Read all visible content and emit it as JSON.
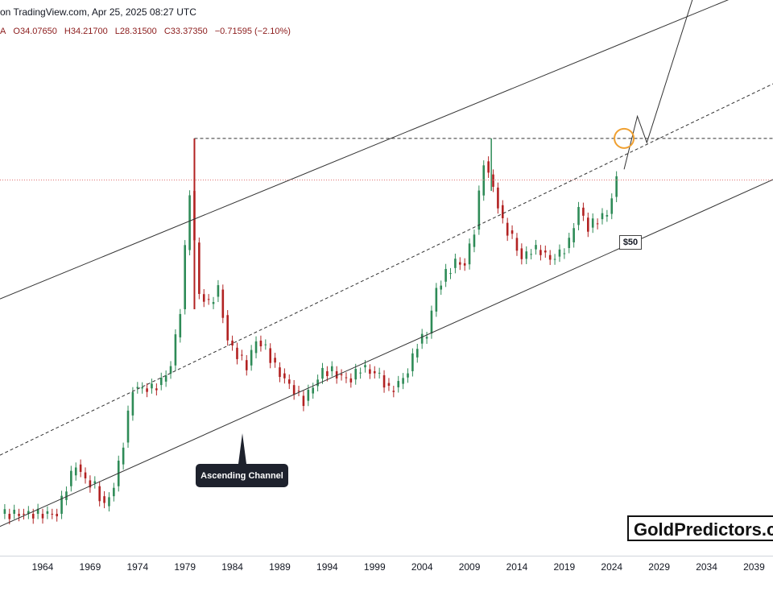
{
  "header": {
    "source": "on TradingView.com, Apr 25, 2025 08:27 UTC",
    "prefix": "A",
    "open": "O34.07650",
    "high": "H34.21700",
    "low": "L28.31500",
    "close": "C33.37350",
    "change": "−0.71595 (−2.10%)"
  },
  "annotations": {
    "channel_label": "Ascending Channel",
    "price_label": "$50",
    "watermark": "GoldPredictors.com"
  },
  "colors": {
    "up": "#26a69a",
    "up_body": "#2e8b57",
    "down": "#b22222",
    "line": "#333333",
    "orange": "#f0a030",
    "price_line": "#e07070"
  },
  "chart_data": {
    "type": "candlestick",
    "title": "",
    "xlabel": "",
    "ylabel": "",
    "x_ticks": [
      "1964",
      "1969",
      "1974",
      "1979",
      "1984",
      "1989",
      "1994",
      "1999",
      "2004",
      "2009",
      "2014",
      "2019",
      "2024",
      "2029",
      "2034",
      "2039"
    ],
    "series": [
      {
        "x": [
          1960,
          1962,
          1964,
          1966,
          1967,
          1968,
          1969,
          1970,
          1971,
          1972,
          1973,
          1974,
          1975,
          1976,
          1977,
          1978,
          1979,
          1980,
          1981,
          1982,
          1983,
          1984,
          1985,
          1986,
          1987,
          1988,
          1989,
          1990,
          1991,
          1992,
          1993,
          1994,
          1995,
          1996,
          1997,
          1998,
          1999,
          2000,
          2001,
          2002,
          2003,
          2004,
          2005,
          2006,
          2007,
          2008,
          2009,
          2010,
          2011,
          2012,
          2013,
          2014,
          2015,
          2016,
          2017,
          2018,
          2019,
          2020,
          2021,
          2022,
          2023,
          2024,
          2025
        ],
        "values": [
          1.3,
          1.3,
          1.3,
          1.3,
          1.7,
          2.1,
          1.8,
          1.7,
          1.4,
          1.7,
          2.6,
          4.4,
          4.4,
          4.4,
          4.7,
          5.5,
          9.5,
          30,
          11,
          10,
          11.5,
          7,
          6.1,
          5.5,
          7,
          6.5,
          5.4,
          4.8,
          4.3,
          3.9,
          4.5,
          5.2,
          5.2,
          4.9,
          4.8,
          5.4,
          5.2,
          5.0,
          4.3,
          4.6,
          5.2,
          6.8,
          7.5,
          11.5,
          13.4,
          15,
          14.7,
          20.6,
          40,
          31,
          22,
          19,
          15.5,
          17,
          16.8,
          15.4,
          16.3,
          18.2,
          25.5,
          21,
          22.8,
          24,
          33.4
        ]
      }
    ],
    "scale": "log",
    "ylim": [
      0.9,
      120
    ],
    "xlim": [
      1959.5,
      2041
    ],
    "ascending_channel": {
      "lower": [
        [
          1959.5,
          1.15
        ],
        [
          2041,
          33.5
        ]
      ],
      "upper": [
        [
          1959.5,
          10.5
        ],
        [
          2041,
          230
        ]
      ],
      "mid": [
        [
          1959.5,
          2.3
        ],
        [
          2041,
          85
        ]
      ]
    },
    "horizontal_level": 50,
    "current_price": 33.3735,
    "projection": [
      [
        2025.3,
        37
      ],
      [
        2026.7,
        62
      ],
      [
        2027.7,
        48
      ],
      [
        2032.8,
        210
      ]
    ]
  }
}
